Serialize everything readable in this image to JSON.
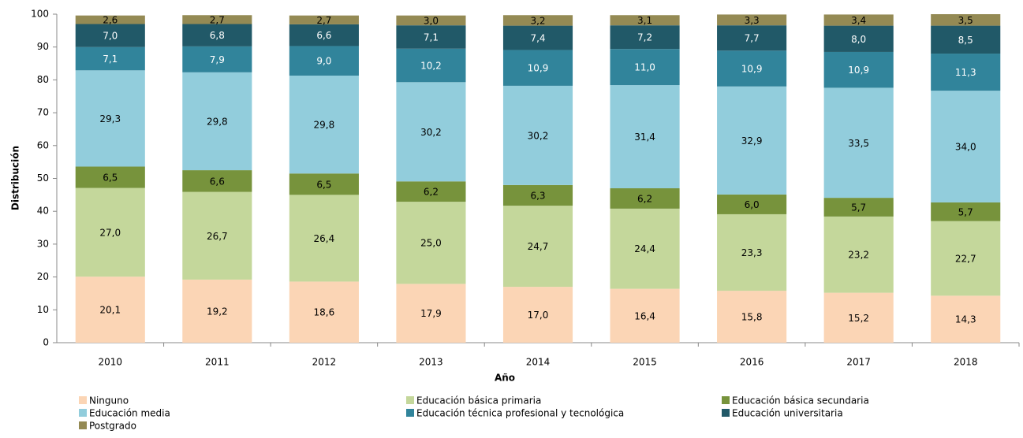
{
  "chart_data": {
    "type": "stacked-bar",
    "x_label": "Año",
    "y_label": "Distribución",
    "categories": [
      "2010",
      "2011",
      "2012",
      "2013",
      "2014",
      "2015",
      "2016",
      "2017",
      "2018"
    ],
    "ylim": [
      0,
      100
    ],
    "yticks": [
      0,
      10,
      20,
      30,
      40,
      50,
      60,
      70,
      80,
      90,
      100
    ],
    "series": [
      {
        "name": "Ninguno",
        "color": "#fbd5b5",
        "values": [
          20.1,
          19.2,
          18.6,
          17.9,
          17.0,
          16.4,
          15.8,
          15.2,
          14.3
        ],
        "value_labels": [
          "20,1",
          "19,2",
          "18,6",
          "17,9",
          "17,0",
          "16,4",
          "15,8",
          "15,2",
          "14,3"
        ]
      },
      {
        "name": "Educación básica primaria",
        "color": "#c4d79b",
        "values": [
          27.0,
          26.7,
          26.4,
          25.0,
          24.7,
          24.4,
          23.3,
          23.2,
          22.7
        ],
        "value_labels": [
          "27,0",
          "26,7",
          "26,4",
          "25,0",
          "24,7",
          "24,4",
          "23,3",
          "23,2",
          "22,7"
        ]
      },
      {
        "name": "Educación básica secundaria",
        "color": "#77933c",
        "values": [
          6.5,
          6.6,
          6.5,
          6.2,
          6.3,
          6.2,
          6.0,
          5.7,
          5.7
        ],
        "value_labels": [
          "6,5",
          "6,6",
          "6,5",
          "6,2",
          "6,3",
          "6,2",
          "6,0",
          "5,7",
          "5,7"
        ]
      },
      {
        "name": "Educación media",
        "color": "#92cddc",
        "values": [
          29.3,
          29.8,
          29.8,
          30.2,
          30.2,
          31.4,
          32.9,
          33.5,
          34.0
        ],
        "value_labels": [
          "29,3",
          "29,8",
          "29,8",
          "30,2",
          "30,2",
          "31,4",
          "32,9",
          "33,5",
          "34,0"
        ]
      },
      {
        "name": "Educación técnica profesional y tecnológica",
        "color": "#31849b",
        "values": [
          7.1,
          7.9,
          9.0,
          10.2,
          10.9,
          11.0,
          10.9,
          10.9,
          11.3
        ],
        "value_labels": [
          "7,1",
          "7,9",
          "9,0",
          "10,2",
          "10,9",
          "11,0",
          "10,9",
          "10,9",
          "11,3"
        ]
      },
      {
        "name": "Educación universitaria",
        "color": "#215968",
        "values": [
          7.0,
          6.8,
          6.6,
          7.1,
          7.4,
          7.2,
          7.7,
          8.0,
          8.5
        ],
        "value_labels": [
          "7,0",
          "6,8",
          "6,6",
          "7,1",
          "7,4",
          "7,2",
          "7,7",
          "8,0",
          "8,5"
        ]
      },
      {
        "name": "Postgrado",
        "color": "#948a54",
        "values": [
          2.6,
          2.7,
          2.7,
          3.0,
          3.2,
          3.1,
          3.3,
          3.4,
          3.5
        ],
        "value_labels": [
          "2,6",
          "2,7",
          "2,7",
          "3,0",
          "3,2",
          "3,1",
          "3,3",
          "3,4",
          "3,5"
        ]
      }
    ]
  }
}
